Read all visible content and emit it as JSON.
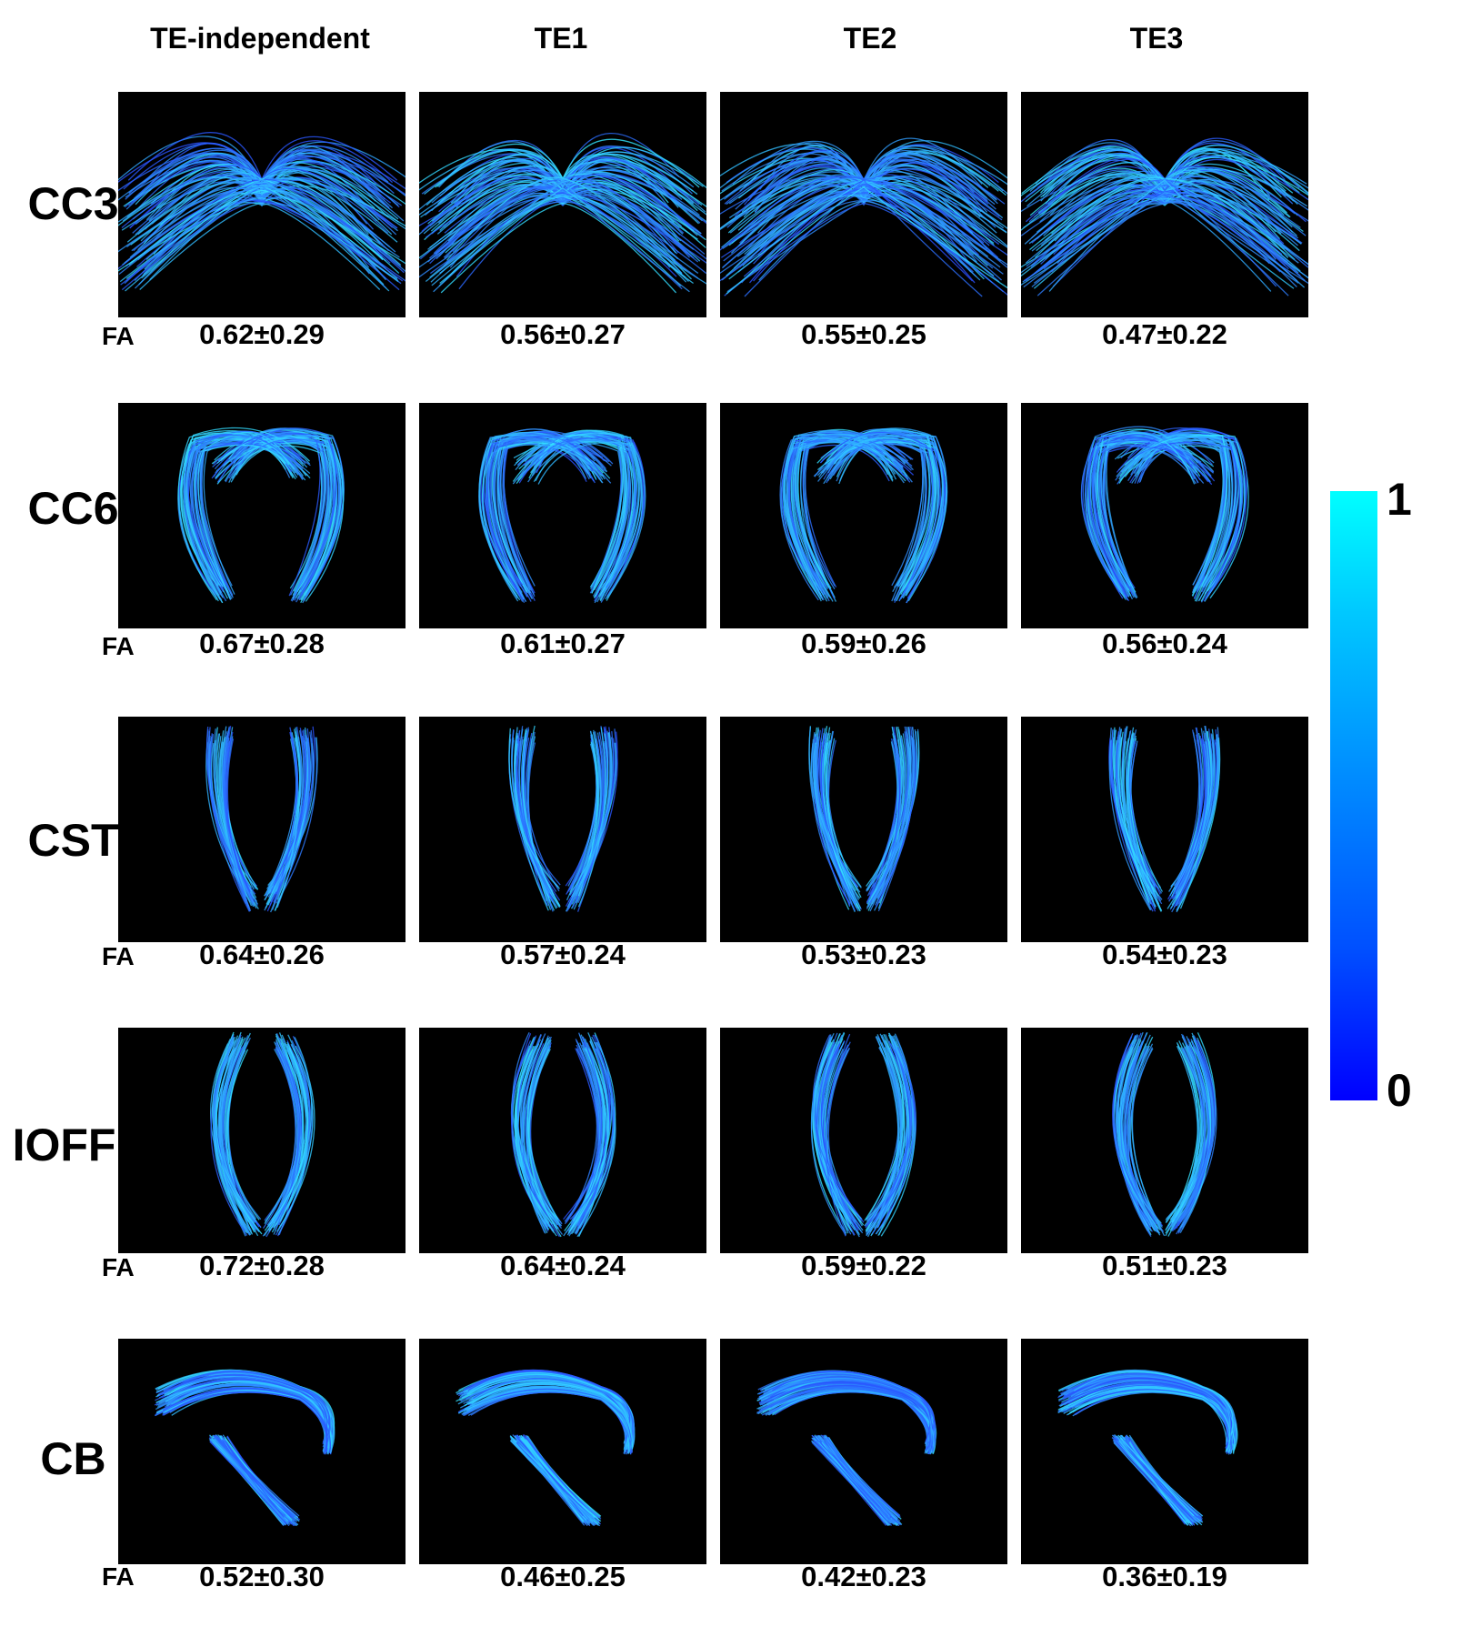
{
  "columns": [
    "TE-independent",
    "TE1",
    "TE2",
    "TE3"
  ],
  "fa_label": "FA",
  "rows": [
    {
      "label": "CC3",
      "shape": "cc3-icon",
      "values": [
        "0.62±0.29",
        "0.56±0.27",
        "0.55±0.25",
        "0.47±0.22"
      ]
    },
    {
      "label": "CC6",
      "shape": "cc6-icon",
      "values": [
        "0.67±0.28",
        "0.61±0.27",
        "0.59±0.26",
        "0.56±0.24"
      ]
    },
    {
      "label": "CST",
      "shape": "cst-icon",
      "values": [
        "0.64±0.26",
        "0.57±0.24",
        "0.53±0.23",
        "0.54±0.23"
      ]
    },
    {
      "label": "IOFF",
      "shape": "ioff-icon",
      "values": [
        "0.72±0.28",
        "0.64±0.24",
        "0.59±0.22",
        "0.51±0.23"
      ]
    },
    {
      "label": "CB",
      "shape": "cb-icon",
      "values": [
        "0.52±0.30",
        "0.46±0.25",
        "0.42±0.23",
        "0.36±0.19"
      ]
    }
  ],
  "colorbar": {
    "max_label": "1",
    "min_label": "0",
    "color_top": "#00ffff",
    "color_bottom": "#0000ff"
  },
  "colors": {
    "panel_background": "#000000",
    "tract_low": "#2a4dff",
    "tract_high": "#33e6ff"
  }
}
